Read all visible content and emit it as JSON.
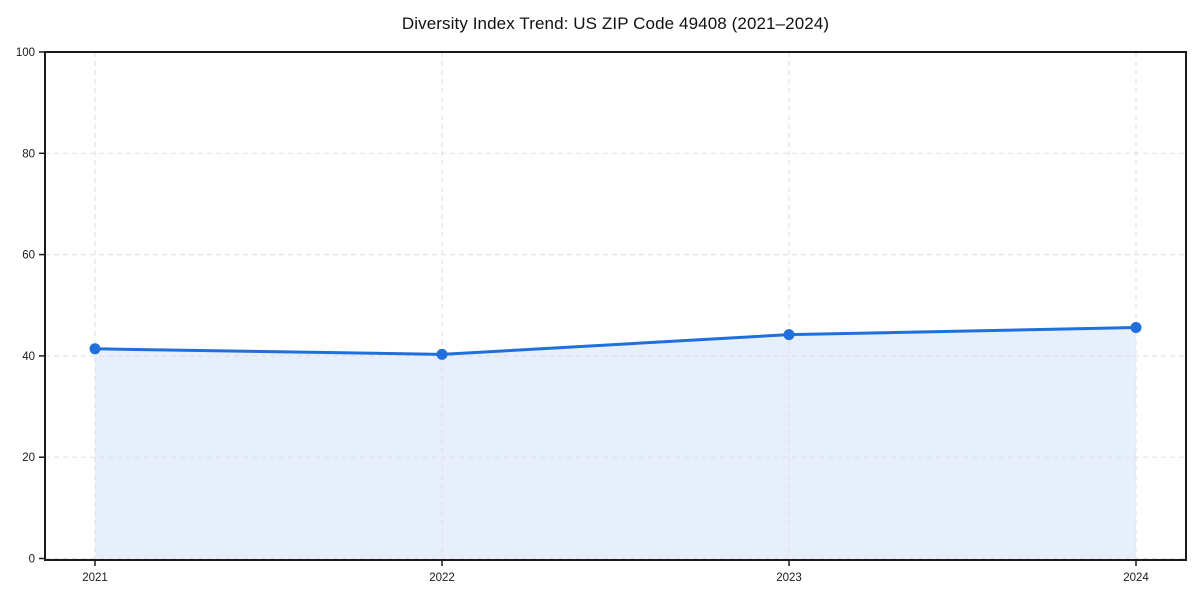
{
  "chart_data": {
    "type": "area",
    "title": "Diversity Index Trend: US ZIP Code 49408 (2021–2024)",
    "categories": [
      "2021",
      "2022",
      "2023",
      "2024"
    ],
    "x": [
      2021,
      2022,
      2023,
      2024
    ],
    "values": [
      41.4,
      40.3,
      44.2,
      45.6
    ],
    "xlabel": "",
    "ylabel": "",
    "ylim": [
      0,
      100
    ],
    "yticks": [
      0,
      20,
      40,
      60,
      80,
      100
    ],
    "grid": true,
    "grid_style": "dashed",
    "legend": false,
    "marker": "circle",
    "colors": {
      "line": "#1f6fdc",
      "marker": "#1f6fdc",
      "fill": "rgba(31, 111, 220, 0.11)",
      "grid": "#e2e2e2",
      "axis": "#1a1a1a",
      "tick_text": "#1a1a1a",
      "background": "#ffffff"
    }
  }
}
